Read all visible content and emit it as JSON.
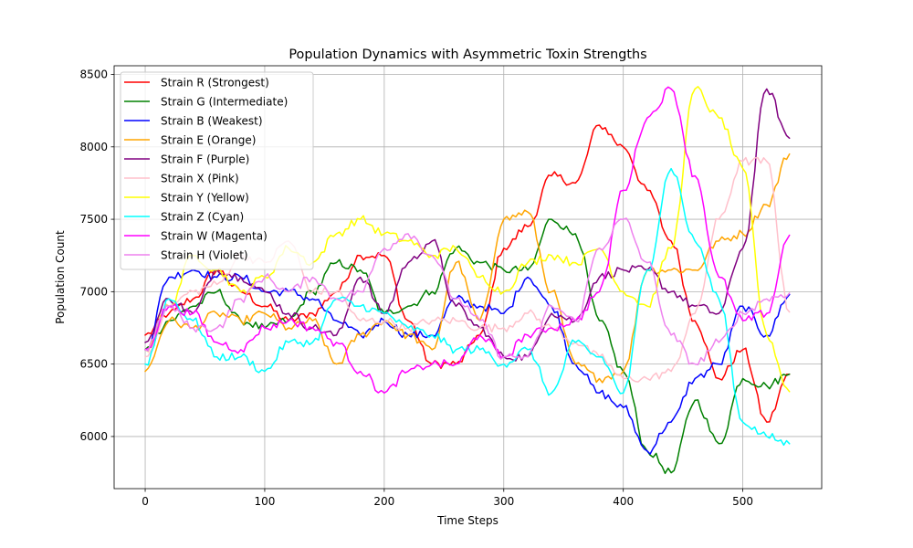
{
  "chart_data": {
    "type": "line",
    "title": "Population Dynamics with Asymmetric Toxin Strengths",
    "xlabel": "Time Steps",
    "ylabel": "Population Count",
    "xlim": [
      -26,
      566
    ],
    "ylim": [
      5640,
      8560
    ],
    "xticks": [
      0,
      100,
      200,
      300,
      400,
      500
    ],
    "yticks": [
      6000,
      6500,
      7000,
      7500,
      8000,
      8500
    ],
    "grid": true,
    "legend_position": "top-left",
    "x": [
      0,
      20,
      40,
      60,
      80,
      100,
      120,
      140,
      160,
      180,
      200,
      220,
      240,
      260,
      280,
      300,
      320,
      340,
      360,
      380,
      400,
      420,
      440,
      460,
      480,
      500,
      520,
      539
    ],
    "series": [
      {
        "name": "Strain R (Strongest)",
        "color": "#ff0000",
        "values": [
          6700,
          6850,
          6950,
          7150,
          7000,
          6900,
          6800,
          6850,
          7000,
          7250,
          7250,
          6800,
          6500,
          6500,
          6700,
          7300,
          7450,
          7800,
          7750,
          8150,
          8000,
          7700,
          7350,
          6800,
          6400,
          6600,
          6100,
          6430
        ]
      },
      {
        "name": "Strain G (Intermediate)",
        "color": "#008000",
        "values": [
          6600,
          6800,
          6900,
          7000,
          6800,
          6750,
          6800,
          7000,
          7200,
          7150,
          6850,
          6900,
          7000,
          7300,
          7200,
          7150,
          7150,
          7500,
          7400,
          6800,
          6450,
          5900,
          5750,
          6250,
          5950,
          6400,
          6350,
          6430
        ]
      },
      {
        "name": "Strain B (Weakest)",
        "color": "#0000ff",
        "values": [
          6600,
          7100,
          7150,
          7100,
          7100,
          7000,
          7000,
          6950,
          6800,
          6700,
          6800,
          6700,
          6700,
          6950,
          6900,
          6850,
          7100,
          6900,
          6500,
          6300,
          6200,
          5900,
          6100,
          6400,
          6500,
          6900,
          6700,
          6980
        ]
      },
      {
        "name": "Strain E (Orange)",
        "color": "#ffa500",
        "values": [
          6450,
          6800,
          6750,
          6850,
          6800,
          6850,
          6750,
          6800,
          6500,
          6700,
          6800,
          6700,
          6600,
          7200,
          6800,
          7500,
          7550,
          7000,
          6500,
          6400,
          6450,
          7150,
          7150,
          7150,
          7350,
          7400,
          7600,
          7950
        ]
      },
      {
        "name": "Strain F (Purple)",
        "color": "#800080",
        "values": [
          6650,
          6950,
          6850,
          7150,
          7100,
          7000,
          6850,
          6750,
          6700,
          7100,
          6850,
          7200,
          7350,
          6900,
          6750,
          6550,
          6550,
          6850,
          6800,
          7100,
          7150,
          7150,
          7000,
          6900,
          6850,
          7300,
          8400,
          8060
        ]
      },
      {
        "name": "Strain X (Pink)",
        "color": "#ffc0cb",
        "values": [
          6550,
          6900,
          7000,
          7050,
          7250,
          7200,
          7350,
          7000,
          7000,
          6800,
          6800,
          6750,
          6800,
          6800,
          6750,
          6750,
          6850,
          6750,
          6650,
          6550,
          6400,
          6400,
          6450,
          6850,
          7500,
          7900,
          7900,
          6860
        ]
      },
      {
        "name": "Strain Y (Yellow)",
        "color": "#ffff00",
        "values": [
          6600,
          6900,
          7250,
          7150,
          7000,
          7100,
          7300,
          7200,
          7400,
          7500,
          7400,
          7350,
          7250,
          7300,
          7100,
          7000,
          7200,
          7250,
          7200,
          7300,
          7000,
          6900,
          7300,
          8400,
          8200,
          7850,
          6700,
          6310
        ]
      },
      {
        "name": "Strain Z (Cyan)",
        "color": "#00ffff",
        "values": [
          6500,
          6950,
          6800,
          6550,
          6550,
          6450,
          6650,
          6650,
          6950,
          6900,
          6850,
          6750,
          6700,
          6600,
          6600,
          6500,
          6600,
          6300,
          6650,
          6550,
          6300,
          7150,
          7850,
          7350,
          6950,
          6100,
          6000,
          5950
        ]
      },
      {
        "name": "Strain W (Magenta)",
        "color": "#ff00ff",
        "values": [
          6600,
          6900,
          6850,
          6650,
          6600,
          6750,
          6800,
          6750,
          6650,
          6450,
          6300,
          6450,
          6500,
          6500,
          6700,
          6550,
          6700,
          6750,
          6800,
          7000,
          7700,
          8200,
          8400,
          7800,
          7100,
          6800,
          6850,
          7390
        ]
      },
      {
        "name": "Strain H (Violet)",
        "color": "#ee82ee",
        "values": [
          6600,
          6900,
          6750,
          6750,
          6950,
          7100,
          7000,
          7100,
          6950,
          7000,
          7300,
          7400,
          7250,
          6950,
          6800,
          6550,
          6550,
          6900,
          6800,
          7300,
          7500,
          7200,
          6700,
          6500,
          6650,
          6850,
          6950,
          6990
        ]
      }
    ]
  }
}
